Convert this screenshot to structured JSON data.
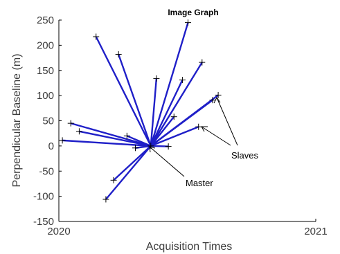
{
  "chart_data": {
    "type": "line",
    "title": "Image Graph",
    "xlabel": "Acquisition Times",
    "ylabel": "Perpendicular Baseline (m)",
    "xlim": [
      "2020",
      "2021"
    ],
    "ylim": [
      -150,
      250
    ],
    "x_tick_labels": [
      "2020",
      "2021"
    ],
    "y_ticks": [
      -150,
      -100,
      -50,
      0,
      50,
      100,
      150,
      200,
      250
    ],
    "y_tick_labels": [
      "-150",
      "-100",
      "-50",
      "0",
      "50",
      "100",
      "150",
      "200",
      "250"
    ],
    "master": {
      "x": "2020-05-11",
      "y": 0
    },
    "slaves": [
      {
        "x": "2020-01-06",
        "y": 11
      },
      {
        "x": "2020-01-18",
        "y": 45
      },
      {
        "x": "2020-01-30",
        "y": 29
      },
      {
        "x": "2020-02-23",
        "y": 217
      },
      {
        "x": "2020-03-08",
        "y": -106
      },
      {
        "x": "2020-03-19",
        "y": -68
      },
      {
        "x": "2020-03-26",
        "y": 182
      },
      {
        "x": "2020-04-07",
        "y": 20
      },
      {
        "x": "2020-04-19",
        "y": -4
      },
      {
        "x": "2020-05-19",
        "y": 134
      },
      {
        "x": "2020-06-05",
        "y": -1
      },
      {
        "x": "2020-06-13",
        "y": 58
      },
      {
        "x": "2020-06-25",
        "y": 131
      },
      {
        "x": "2020-07-03",
        "y": 245
      },
      {
        "x": "2020-07-23",
        "y": 166
      },
      {
        "x": "2020-07-18",
        "y": 38
      },
      {
        "x": "2020-08-07",
        "y": 91
      },
      {
        "x": "2020-08-15",
        "y": 101
      }
    ],
    "grid": false,
    "legend": "none"
  },
  "annotations": {
    "slaves_label": "Slaves",
    "master_label": "Master"
  }
}
